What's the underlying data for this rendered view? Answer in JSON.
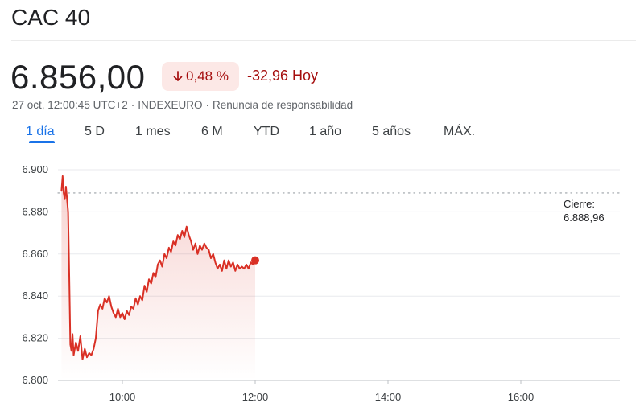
{
  "header": {
    "title": "CAC 40"
  },
  "quote": {
    "price": "6.856,00",
    "change_percent": "0,48 %",
    "change_direction": "down",
    "change_absolute": "-32,96 Hoy",
    "timestamp": "27 oct, 12:00:45 UTC+2",
    "exchange": "INDEXEURO",
    "disclaimer": "Renuncia de responsabilidad",
    "separator": "·"
  },
  "tabs": [
    {
      "label": "1 día",
      "active": true
    },
    {
      "label": "5 D",
      "active": false
    },
    {
      "label": "1 mes",
      "active": false
    },
    {
      "label": "6 M",
      "active": false
    },
    {
      "label": "YTD",
      "active": false
    },
    {
      "label": "1 año",
      "active": false
    },
    {
      "label": "5 años",
      "active": false
    },
    {
      "label": "MÁX.",
      "active": false
    }
  ],
  "colors": {
    "negative": "#a50e0e",
    "line": "#d93025",
    "accent": "#1a73e8"
  },
  "chart_data": {
    "type": "line",
    "y_ticks": [
      "6.900",
      "6.880",
      "6.860",
      "6.840",
      "6.820",
      "6.800"
    ],
    "y_tick_values": [
      6900,
      6880,
      6860,
      6840,
      6820,
      6800
    ],
    "x_ticks": [
      "10:00",
      "12:00",
      "14:00",
      "16:00"
    ],
    "x_tick_values": [
      "10:00",
      "12:00",
      "14:00",
      "16:00"
    ],
    "x_range": [
      "09:00",
      "17:30"
    ],
    "ylim": [
      6800,
      6900
    ],
    "previous_close": {
      "label": "Cierre:",
      "value": "6.888,96",
      "numeric": 6888.96
    },
    "grid": true,
    "series": [
      {
        "x": [
          "09:05",
          "09:06",
          "09:07",
          "09:08",
          "09:09",
          "09:10",
          "09:11",
          "09:12",
          "09:13",
          "09:14",
          "09:15",
          "09:16",
          "09:18",
          "09:20",
          "09:22",
          "09:24",
          "09:26",
          "09:28",
          "09:30",
          "09:32",
          "09:34",
          "09:36",
          "09:38",
          "09:40",
          "09:42",
          "09:44",
          "09:46",
          "09:48",
          "09:50",
          "09:52",
          "09:54",
          "09:56",
          "09:58",
          "10:00",
          "10:02",
          "10:04",
          "10:06",
          "10:08",
          "10:10",
          "10:12",
          "10:14",
          "10:16",
          "10:18",
          "10:20",
          "10:22",
          "10:24",
          "10:26",
          "10:28",
          "10:30",
          "10:32",
          "10:34",
          "10:36",
          "10:38",
          "10:40",
          "10:42",
          "10:44",
          "10:46",
          "10:48",
          "10:50",
          "10:52",
          "10:54",
          "10:56",
          "10:58",
          "11:00",
          "11:02",
          "11:04",
          "11:06",
          "11:08",
          "11:10",
          "11:12",
          "11:14",
          "11:16",
          "11:18",
          "11:20",
          "11:22",
          "11:24",
          "11:26",
          "11:28",
          "11:30",
          "11:32",
          "11:34",
          "11:36",
          "11:38",
          "11:40",
          "11:42",
          "11:44",
          "11:46",
          "11:48",
          "11:50",
          "11:52",
          "11:54",
          "11:56",
          "11:58",
          "12:00"
        ],
        "y": [
          6890,
          6897,
          6889,
          6886,
          6892,
          6886,
          6880,
          6850,
          6817,
          6814,
          6822,
          6812,
          6818,
          6814,
          6821,
          6810,
          6815,
          6811,
          6813,
          6812,
          6815,
          6820,
          6833,
          6836,
          6834,
          6839,
          6837,
          6840,
          6835,
          6832,
          6830,
          6834,
          6830,
          6832,
          6829,
          6833,
          6831,
          6835,
          6834,
          6839,
          6836,
          6840,
          6838,
          6845,
          6842,
          6848,
          6846,
          6851,
          6849,
          6855,
          6857,
          6854,
          6860,
          6858,
          6863,
          6861,
          6866,
          6864,
          6869,
          6867,
          6871,
          6868,
          6873,
          6869,
          6866,
          6862,
          6865,
          6860,
          6864,
          6862,
          6865,
          6863,
          6862,
          6858,
          6860,
          6856,
          6853,
          6855,
          6852,
          6857,
          6853,
          6857,
          6854,
          6856,
          6852,
          6855,
          6853,
          6854,
          6853,
          6855,
          6853,
          6856,
          6855,
          6857
        ]
      }
    ]
  }
}
